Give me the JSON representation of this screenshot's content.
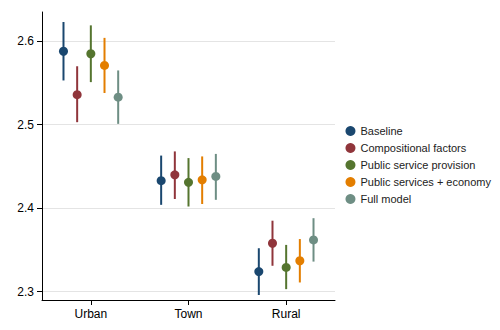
{
  "chart_data": {
    "type": "errorbar_scatter",
    "categories": [
      "Urban",
      "Town",
      "Rural"
    ],
    "series": [
      {
        "name": "Baseline",
        "color": "#1a476f",
        "values": [
          2.588,
          2.433,
          2.324
        ],
        "ci_low": [
          2.553,
          2.404,
          2.296
        ],
        "ci_high": [
          2.623,
          2.463,
          2.352
        ]
      },
      {
        "name": "Compositional factors",
        "color": "#90353b",
        "values": [
          2.536,
          2.44,
          2.358
        ],
        "ci_low": [
          2.503,
          2.411,
          2.331
        ],
        "ci_high": [
          2.57,
          2.468,
          2.385
        ]
      },
      {
        "name": "Public service provision",
        "color": "#55752f",
        "values": [
          2.585,
          2.431,
          2.329
        ],
        "ci_low": [
          2.551,
          2.402,
          2.303
        ],
        "ci_high": [
          2.619,
          2.46,
          2.356
        ]
      },
      {
        "name": "Public services + economy",
        "color": "#e37e00",
        "values": [
          2.571,
          2.434,
          2.337
        ],
        "ci_low": [
          2.538,
          2.405,
          2.311
        ],
        "ci_high": [
          2.604,
          2.462,
          2.363
        ]
      },
      {
        "name": "Full model",
        "color": "#6e8e84",
        "values": [
          2.533,
          2.438,
          2.362
        ],
        "ci_low": [
          2.501,
          2.41,
          2.336
        ],
        "ci_high": [
          2.565,
          2.465,
          2.388
        ]
      }
    ],
    "ylim": [
      2.29,
      2.635
    ],
    "yticks": [
      2.3,
      2.4,
      2.5,
      2.6
    ],
    "grid": true,
    "legend": "right",
    "marker": "circle"
  }
}
